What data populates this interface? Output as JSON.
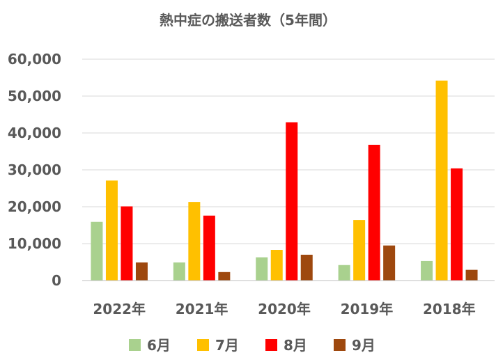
{
  "chart_data": {
    "type": "bar",
    "title": "熱中症の搬送者数（5年間）",
    "categories": [
      "2022年",
      "2021年",
      "2020年",
      "2019年",
      "2018年"
    ],
    "series": [
      {
        "name": "6月",
        "color": "#a9d18e",
        "values": [
          15900,
          4900,
          6300,
          4200,
          5300
        ]
      },
      {
        "name": "7月",
        "color": "#ffc000",
        "values": [
          27100,
          21300,
          8300,
          16400,
          54200
        ]
      },
      {
        "name": "8月",
        "color": "#ff0000",
        "values": [
          20100,
          17600,
          42900,
          36800,
          30400
        ]
      },
      {
        "name": "9月",
        "color": "#9e480e",
        "values": [
          4900,
          2300,
          7000,
          9500,
          2900
        ]
      }
    ],
    "ylim": [
      0,
      60000
    ],
    "yticks": [
      "0",
      "10,000",
      "20,000",
      "30,000",
      "40,000",
      "50,000",
      "60,000"
    ],
    "ytick_values": [
      0,
      10000,
      20000,
      30000,
      40000,
      50000,
      60000
    ],
    "grid": true,
    "legend_position": "bottom"
  }
}
